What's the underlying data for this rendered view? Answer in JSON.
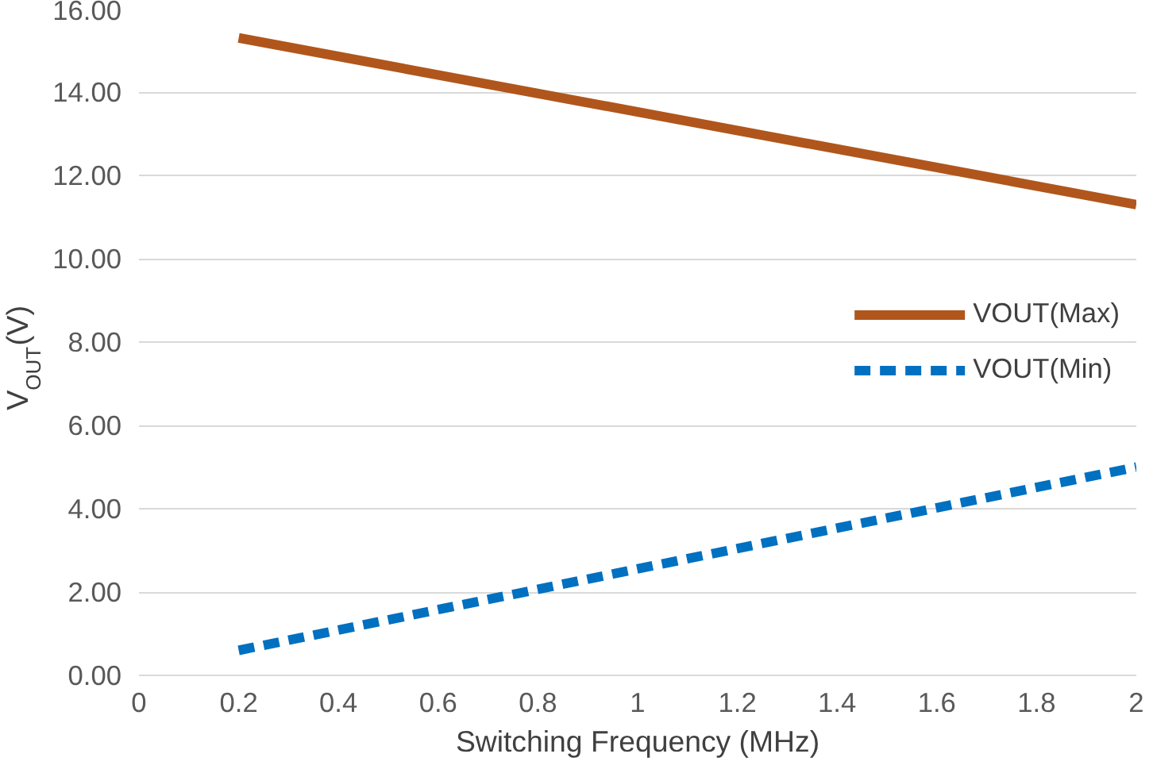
{
  "chart_data": {
    "type": "line",
    "xlabel": "Switching Frequency (MHz)",
    "ylabel": "V$_{OUT}$(V)",
    "xlim": [
      0,
      2
    ],
    "xticks": [
      0,
      0.2,
      0.4,
      0.6,
      0.8,
      1,
      1.2,
      1.4,
      1.6,
      1.8,
      2
    ],
    "ylim": [
      0,
      16
    ],
    "yticks": [
      {
        "value": 0,
        "label": "0.00"
      },
      {
        "value": 2,
        "label": "2.00"
      },
      {
        "value": 4,
        "label": "4.00"
      },
      {
        "value": 6,
        "label": "6.00"
      },
      {
        "value": 8,
        "label": "8.00"
      },
      {
        "value": 10,
        "label": "10.00"
      },
      {
        "value": 12,
        "label": "12.00"
      },
      {
        "value": 14,
        "label": "14.00"
      },
      {
        "value": 16,
        "label": "16.00"
      }
    ],
    "x": [
      0.2,
      2
    ],
    "series": [
      {
        "name": "VOUT(Max)",
        "color": "#b0561c",
        "values": [
          15.3,
          11.3
        ],
        "line_style": "solid"
      },
      {
        "name": "VOUT(Min)",
        "color": "#0070c0",
        "values": [
          0.6,
          5.0
        ],
        "line_style": "dashed"
      }
    ],
    "grid": "y",
    "legend": "right",
    "marker": "none"
  }
}
